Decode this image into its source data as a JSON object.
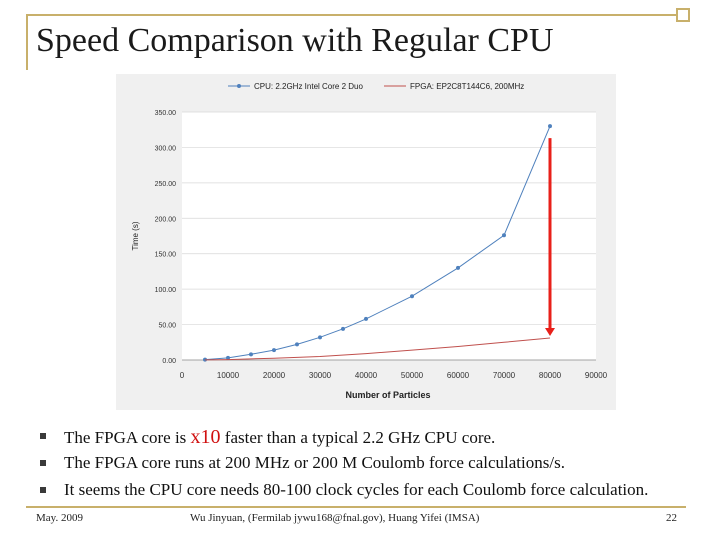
{
  "slide": {
    "title": "Speed Comparison with Regular CPU",
    "footer_left": "May. 2009",
    "footer_center": "Wu Jinyuan, (Fermilab jywu168@fnal.gov), Huang Yifei (IMSA)",
    "footer_right": "22",
    "frame_color": "#c8b06b"
  },
  "bullets": [
    {
      "before": "The FPGA core is ",
      "highlight": "x10",
      "after": " faster than a typical 2.2 GHz CPU core."
    },
    {
      "before": "The FPGA core runs at 200 MHz or 200 M Coulomb force calculations/s.",
      "highlight": "",
      "after": ""
    },
    {
      "before": "It seems the CPU core needs 80-100 clock cycles for each Coulomb force calculation.",
      "highlight": "",
      "after": ""
    }
  ],
  "chart_data": {
    "type": "line",
    "xlabel": "Number of Particles",
    "ylabel": "Time (s)",
    "xlim": [
      0,
      90000
    ],
    "ylim": [
      0,
      350
    ],
    "x_ticks": [
      "0",
      "10000",
      "20000",
      "30000",
      "40000",
      "50000",
      "60000",
      "70000",
      "80000",
      "90000"
    ],
    "y_ticks": [
      "0.00",
      "50.00",
      "100.00",
      "150.00",
      "200.00",
      "250.00",
      "300.00",
      "350.00"
    ],
    "grid": "horizontal",
    "legend_position": "top",
    "series": [
      {
        "name": "CPU: 2.2GHz Intel Core 2 Duo",
        "color": "#4f81bd",
        "markers": true,
        "x": [
          5000,
          10000,
          15000,
          20000,
          25000,
          30000,
          35000,
          40000,
          50000,
          60000,
          70000,
          80000
        ],
        "y": [
          0.5,
          3,
          8,
          14,
          22,
          32,
          44,
          58,
          90,
          130,
          176,
          330
        ]
      },
      {
        "name": "FPGA: EP2C8T144C6, 200MHz",
        "color": "#c0504d",
        "markers": false,
        "x": [
          5000,
          10000,
          20000,
          30000,
          40000,
          50000,
          60000,
          70000,
          80000
        ],
        "y": [
          0.1,
          0.6,
          2.5,
          5,
          9,
          14,
          19,
          25,
          31
        ]
      }
    ],
    "annotation_arrow_color": "#e8201a"
  }
}
